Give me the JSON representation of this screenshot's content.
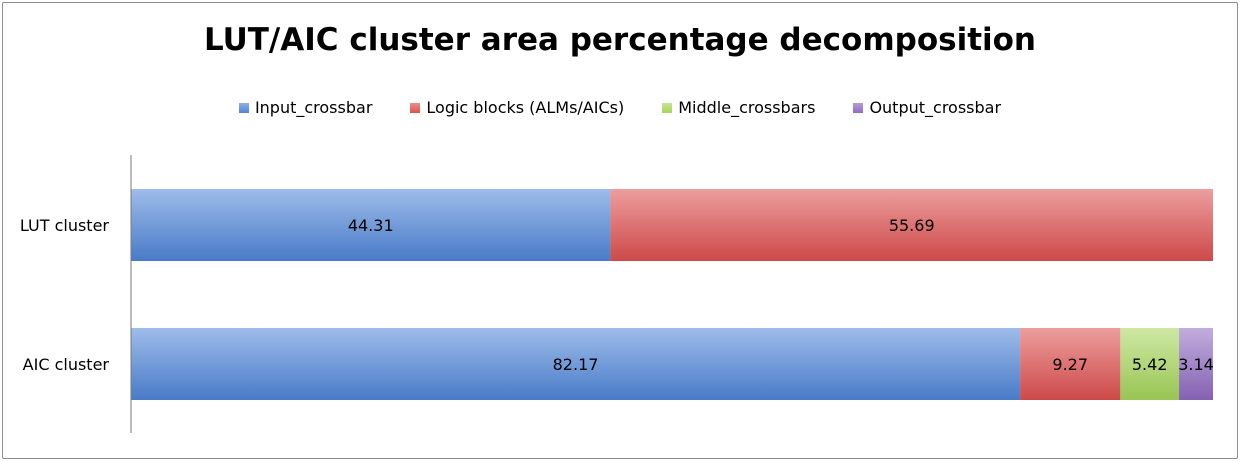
{
  "chart_data": {
    "type": "bar",
    "orientation": "horizontal",
    "stacked": true,
    "title": "LUT/AIC cluster area percentage decomposition",
    "categories": [
      "LUT cluster",
      "AIC cluster"
    ],
    "series": [
      {
        "name": "Input_crossbar",
        "color": "#4f86d9",
        "values": [
          44.31,
          82.17
        ]
      },
      {
        "name": "Logic blocks (ALMs/AICs)",
        "color": "#df4f4f",
        "values": [
          55.69,
          9.27
        ]
      },
      {
        "name": "Middle_crossbars",
        "color": "#a6d65a",
        "values": [
          null,
          5.42
        ]
      },
      {
        "name": "Output_crossbar",
        "color": "#9069c2",
        "values": [
          null,
          3.14
        ]
      }
    ],
    "xlim": [
      0,
      100
    ],
    "grid": false,
    "legend": "top"
  }
}
